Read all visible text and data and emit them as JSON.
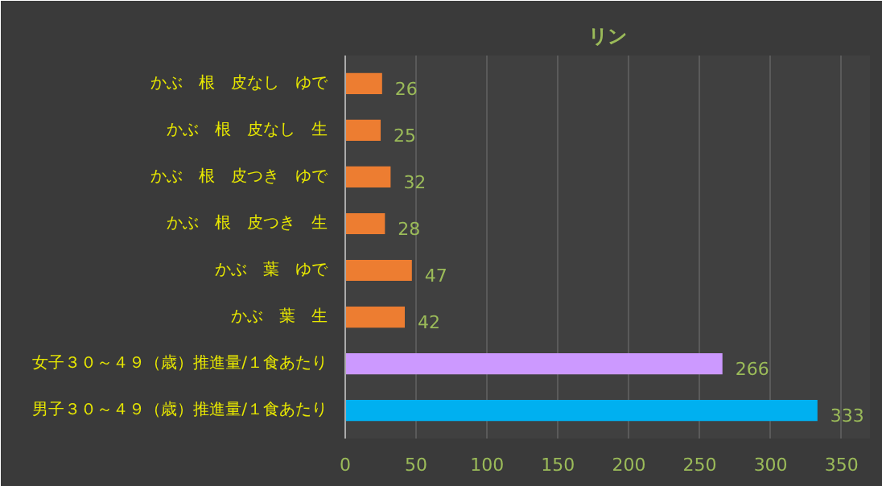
{
  "chart_data": {
    "type": "bar",
    "orientation": "horizontal",
    "title": "リン",
    "categories": [
      "かぶ　根　皮なし　ゆで",
      "かぶ　根　皮なし　生",
      "かぶ　根　皮つき　ゆで",
      "かぶ　根　皮つき　生",
      "かぶ　葉　ゆで",
      "かぶ　葉　生",
      "女子３０～４９（歳）推進量/１食あたり",
      "男子３０～４９（歳）推進量/１食あたり"
    ],
    "values": [
      26,
      25,
      32,
      28,
      47,
      42,
      266,
      333
    ],
    "colors": [
      "#ed7d31",
      "#ed7d31",
      "#ed7d31",
      "#ed7d31",
      "#ed7d31",
      "#ed7d31",
      "#cc99ff",
      "#00b0f0"
    ],
    "xlim": [
      0,
      370
    ],
    "xticks": [
      0,
      50,
      100,
      150,
      200,
      250,
      300,
      350
    ],
    "grid": "x",
    "data_labels": true
  }
}
